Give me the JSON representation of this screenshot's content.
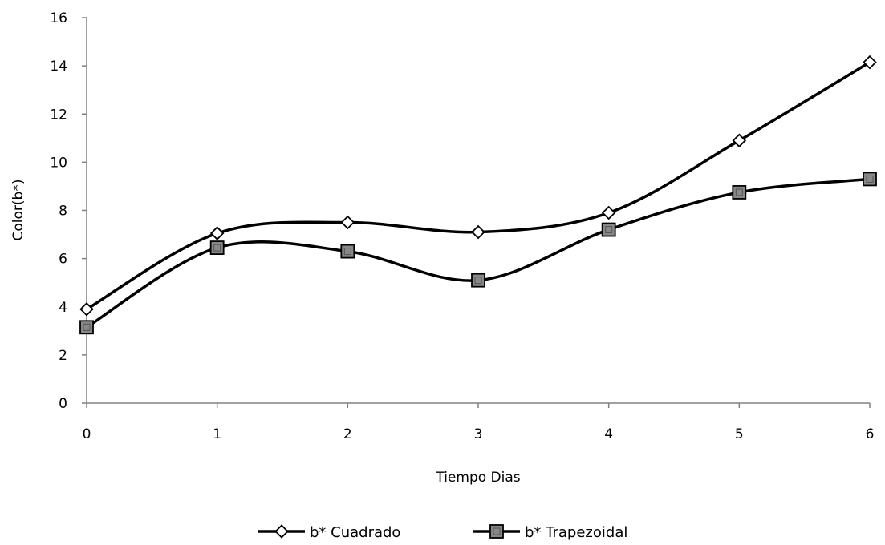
{
  "chart_data": {
    "type": "line",
    "title": "",
    "xlabel": "Tiempo Dias",
    "ylabel": "Color(b*)",
    "x": [
      0,
      1,
      2,
      3,
      4,
      5,
      6
    ],
    "x_ticks": [
      "0",
      "1",
      "2",
      "3",
      "4",
      "5",
      "6"
    ],
    "y_ticks": [
      "0",
      "2",
      "4",
      "6",
      "8",
      "10",
      "12",
      "14",
      "16"
    ],
    "ylim": [
      0,
      16
    ],
    "xlim": [
      0,
      6
    ],
    "grid": false,
    "smooth": true,
    "legend_position": "bottom",
    "series": [
      {
        "name": "b* Cuadrado",
        "marker": "diamond",
        "values": [
          3.9,
          7.05,
          7.5,
          7.1,
          7.9,
          10.9,
          14.15
        ]
      },
      {
        "name": "b* Trapezoidal",
        "marker": "square",
        "values": [
          3.15,
          6.45,
          6.3,
          5.1,
          7.2,
          8.75,
          9.3
        ]
      }
    ],
    "colors": {
      "line": "#000000",
      "diamond_fill": "#ffffff",
      "square_fill": "#888888"
    }
  }
}
